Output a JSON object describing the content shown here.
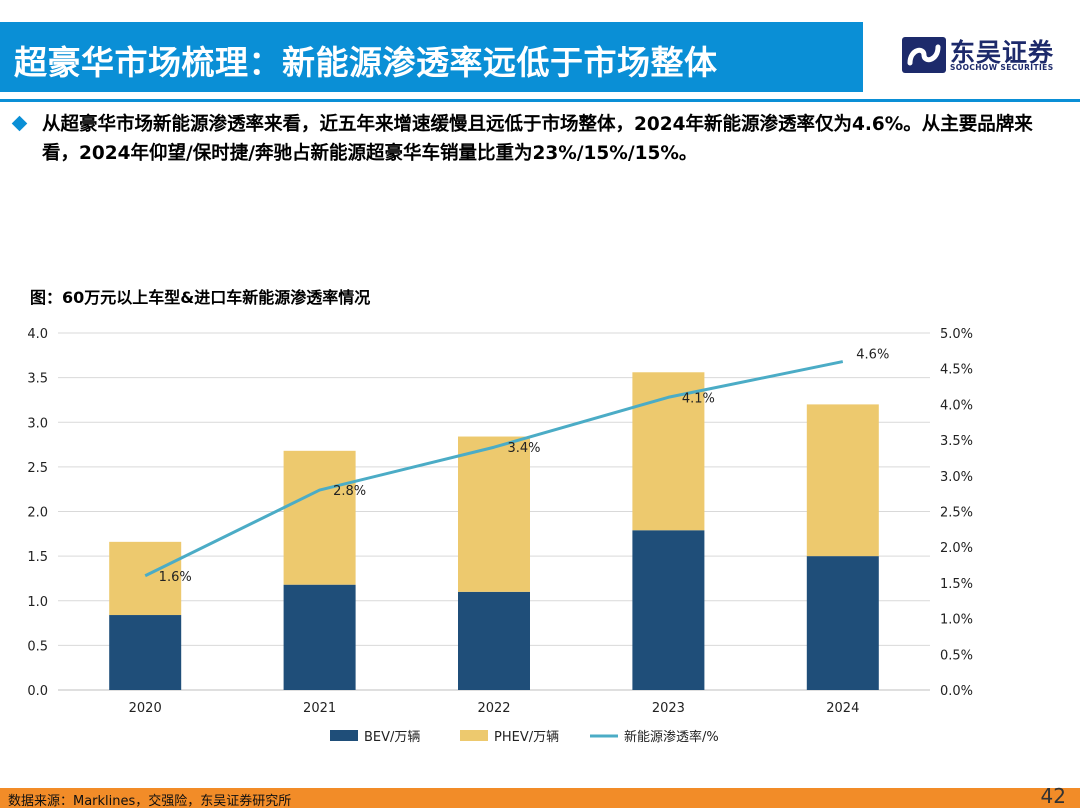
{
  "header": {
    "title": "超豪华市场梳理：新能源渗透率远低于市场整体",
    "logo_cn": "东吴证券",
    "logo_en": "SOOCHOW SECURITIES"
  },
  "bullet": "从超豪华市场新能源渗透率来看，近五年来增速缓慢且远低于市场整体，2024年新能源渗透率仅为4.6%。从主要品牌来看，2024年仰望/保时捷/奔驰占新能源超豪华车销量比重为23%/15%/15%。",
  "chart_title": "图：60万元以上车型&进口车新能源渗透率情况",
  "chart_data": {
    "type": "bar",
    "stacked": true,
    "categories": [
      "2020",
      "2021",
      "2022",
      "2023",
      "2024"
    ],
    "series": [
      {
        "name": "BEV/万辆",
        "type": "bar",
        "axis": "left",
        "color": "#1f4e79",
        "values": [
          0.84,
          1.18,
          1.1,
          1.79,
          1.5
        ]
      },
      {
        "name": "PHEV/万辆",
        "type": "bar",
        "axis": "left",
        "color": "#edc96e",
        "values": [
          0.82,
          1.5,
          1.74,
          1.77,
          1.7
        ]
      },
      {
        "name": "新能源渗透率/%",
        "type": "line",
        "axis": "right",
        "color": "#4bacc6",
        "values": [
          1.6,
          2.8,
          3.4,
          4.1,
          4.6
        ],
        "labels": [
          "1.6%",
          "2.8%",
          "3.4%",
          "4.1%",
          "4.6%"
        ]
      }
    ],
    "y_left": {
      "min": 0,
      "max": 4.0,
      "ticks": [
        "0.0",
        "0.5",
        "1.0",
        "1.5",
        "2.0",
        "2.5",
        "3.0",
        "3.5",
        "4.0"
      ]
    },
    "y_right": {
      "min": 0,
      "max": 5.0,
      "ticks": [
        "0.0%",
        "0.5%",
        "1.0%",
        "1.5%",
        "2.0%",
        "2.5%",
        "3.0%",
        "3.5%",
        "4.0%",
        "4.5%",
        "5.0%"
      ]
    },
    "grid": true,
    "legend_position": "bottom"
  },
  "footer": {
    "source": "数据来源：Marklines，交强险，东吴证券研究所",
    "page": "42"
  }
}
